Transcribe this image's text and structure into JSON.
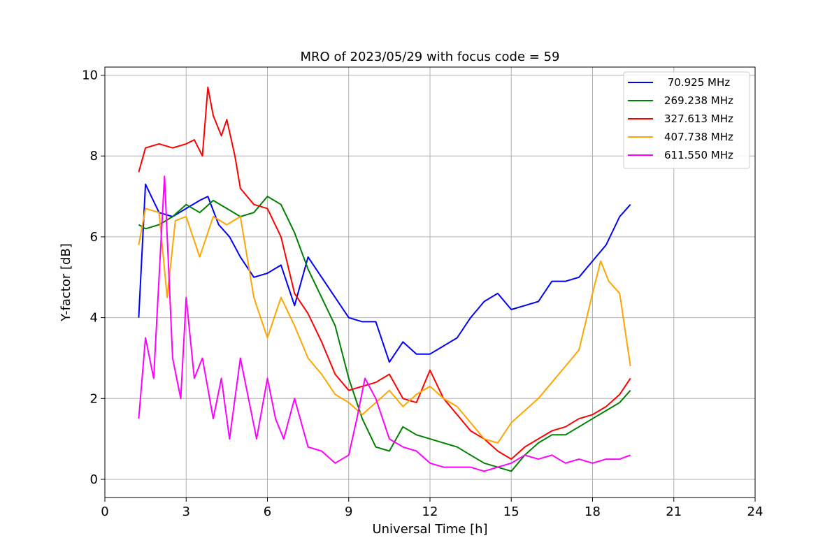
{
  "chart_data": {
    "type": "line",
    "title": "MRO of 2023/05/29 with focus code = 59",
    "xlabel": "Universal Time [h]",
    "ylabel": "Y-factor [dB]",
    "xlim": [
      0,
      24
    ],
    "ylim": [
      -0.45,
      10.2
    ],
    "xticks": [
      0,
      3,
      6,
      9,
      12,
      15,
      18,
      21,
      24
    ],
    "yticks": [
      0,
      2,
      4,
      6,
      8,
      10
    ],
    "grid": true,
    "legend_position": "top-right",
    "series": [
      {
        "name": " 70.925 MHz",
        "color": "#0000ff",
        "x": [
          1.25,
          1.5,
          2.0,
          2.5,
          3.0,
          3.5,
          3.8,
          4.2,
          4.6,
          5.0,
          5.5,
          6.0,
          6.5,
          7.0,
          7.5,
          8.0,
          8.5,
          9.0,
          9.5,
          10.0,
          10.5,
          11.0,
          11.5,
          12.0,
          12.5,
          13.0,
          13.5,
          14.0,
          14.5,
          15.0,
          15.5,
          16.0,
          16.5,
          17.0,
          17.5,
          18.0,
          18.5,
          19.0,
          19.4
        ],
        "y": [
          4.0,
          7.3,
          6.6,
          6.5,
          6.7,
          6.9,
          7.0,
          6.3,
          6.0,
          5.5,
          5.0,
          5.1,
          5.3,
          4.3,
          5.5,
          5.0,
          4.5,
          4.0,
          3.9,
          3.9,
          2.9,
          3.4,
          3.1,
          3.1,
          3.3,
          3.5,
          4.0,
          4.4,
          4.6,
          4.2,
          4.3,
          4.4,
          4.9,
          4.9,
          5.0,
          5.4,
          5.8,
          6.5,
          6.8
        ]
      },
      {
        "name": "269.238 MHz",
        "color": "#008000",
        "x": [
          1.25,
          1.5,
          2.0,
          2.5,
          3.0,
          3.5,
          4.0,
          4.5,
          5.0,
          5.5,
          6.0,
          6.5,
          7.0,
          7.5,
          8.0,
          8.5,
          9.0,
          9.5,
          10.0,
          10.5,
          11.0,
          11.5,
          12.0,
          12.5,
          13.0,
          13.5,
          14.0,
          14.5,
          15.0,
          15.5,
          16.0,
          16.5,
          17.0,
          17.5,
          18.0,
          18.5,
          19.0,
          19.4
        ],
        "y": [
          6.3,
          6.2,
          6.3,
          6.5,
          6.8,
          6.6,
          6.9,
          6.7,
          6.5,
          6.6,
          7.0,
          6.8,
          6.1,
          5.2,
          4.5,
          3.8,
          2.5,
          1.5,
          0.8,
          0.7,
          1.3,
          1.1,
          1.0,
          0.9,
          0.8,
          0.6,
          0.4,
          0.3,
          0.2,
          0.6,
          0.9,
          1.1,
          1.1,
          1.3,
          1.5,
          1.7,
          1.9,
          2.2
        ]
      },
      {
        "name": "327.613 MHz",
        "color": "#ff0000",
        "x": [
          1.25,
          1.5,
          2.0,
          2.5,
          3.0,
          3.3,
          3.6,
          3.8,
          4.0,
          4.3,
          4.5,
          4.8,
          5.0,
          5.5,
          6.0,
          6.5,
          7.0,
          7.5,
          8.0,
          8.5,
          9.0,
          9.5,
          10.0,
          10.5,
          11.0,
          11.5,
          12.0,
          12.5,
          13.0,
          13.5,
          14.0,
          14.5,
          15.0,
          15.5,
          16.0,
          16.5,
          17.0,
          17.5,
          18.0,
          18.5,
          19.0,
          19.4
        ],
        "y": [
          7.6,
          8.2,
          8.3,
          8.2,
          8.3,
          8.4,
          8.0,
          9.7,
          9.0,
          8.5,
          8.9,
          8.0,
          7.2,
          6.8,
          6.7,
          6.0,
          4.6,
          4.1,
          3.4,
          2.6,
          2.2,
          2.3,
          2.4,
          2.6,
          2.0,
          1.9,
          2.7,
          2.0,
          1.6,
          1.2,
          1.0,
          0.7,
          0.5,
          0.8,
          1.0,
          1.2,
          1.3,
          1.5,
          1.6,
          1.8,
          2.1,
          2.5
        ]
      },
      {
        "name": "407.738 MHz",
        "color": "#ffa500",
        "x": [
          1.25,
          1.5,
          2.0,
          2.3,
          2.6,
          3.0,
          3.5,
          4.0,
          4.5,
          5.0,
          5.5,
          6.0,
          6.5,
          7.0,
          7.5,
          8.0,
          8.5,
          9.0,
          9.5,
          10.0,
          10.5,
          11.0,
          11.5,
          12.0,
          12.5,
          13.0,
          13.5,
          14.0,
          14.5,
          15.0,
          15.5,
          16.0,
          16.5,
          17.0,
          17.5,
          18.0,
          18.3,
          18.6,
          19.0,
          19.4
        ],
        "y": [
          5.8,
          6.7,
          6.6,
          4.5,
          6.4,
          6.5,
          5.5,
          6.5,
          6.3,
          6.5,
          4.5,
          3.5,
          4.5,
          3.8,
          3.0,
          2.6,
          2.1,
          1.9,
          1.6,
          1.9,
          2.2,
          1.8,
          2.1,
          2.3,
          2.0,
          1.8,
          1.4,
          1.0,
          0.9,
          1.4,
          1.7,
          2.0,
          2.4,
          2.8,
          3.2,
          4.6,
          5.4,
          4.9,
          4.6,
          2.8
        ]
      },
      {
        "name": "611.550 MHz",
        "color": "#ff00ff",
        "x": [
          1.25,
          1.5,
          1.8,
          2.0,
          2.2,
          2.5,
          2.8,
          3.0,
          3.3,
          3.6,
          4.0,
          4.3,
          4.6,
          5.0,
          5.3,
          5.6,
          6.0,
          6.3,
          6.6,
          7.0,
          7.5,
          8.0,
          8.5,
          9.0,
          9.3,
          9.6,
          10.0,
          10.5,
          11.0,
          11.5,
          12.0,
          12.5,
          13.0,
          13.5,
          14.0,
          14.5,
          15.0,
          15.5,
          16.0,
          16.5,
          17.0,
          17.5,
          18.0,
          18.5,
          19.0,
          19.4
        ],
        "y": [
          1.5,
          3.5,
          2.5,
          5.0,
          7.5,
          3.0,
          2.0,
          4.5,
          2.5,
          3.0,
          1.5,
          2.5,
          1.0,
          3.0,
          2.0,
          1.0,
          2.5,
          1.5,
          1.0,
          2.0,
          0.8,
          0.7,
          0.4,
          0.6,
          1.5,
          2.5,
          2.0,
          1.0,
          0.8,
          0.7,
          0.4,
          0.3,
          0.3,
          0.3,
          0.2,
          0.3,
          0.4,
          0.6,
          0.5,
          0.6,
          0.4,
          0.5,
          0.4,
          0.5,
          0.5,
          0.6
        ]
      }
    ]
  }
}
